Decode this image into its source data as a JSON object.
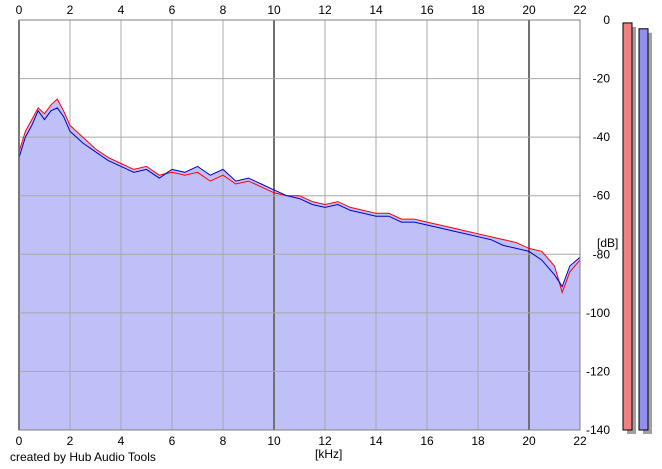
{
  "chart_data": {
    "type": "area",
    "xlabel": "[kHz]",
    "ylabel": "[dB]",
    "credit": "created by Hub Audio Tools",
    "xlim": [
      0,
      22
    ],
    "ylim": [
      -140,
      0
    ],
    "x_ticks": [
      0,
      2,
      4,
      6,
      8,
      10,
      12,
      14,
      16,
      18,
      20,
      22
    ],
    "y_ticks": [
      0,
      -20,
      -40,
      -60,
      -80,
      -100,
      -120,
      -140
    ],
    "grid": true,
    "series": [
      {
        "color": "#ff0000",
        "x": [
          0,
          0.25,
          0.5,
          0.75,
          1,
          1.25,
          1.5,
          1.75,
          2,
          2.5,
          3,
          3.5,
          4,
          4.5,
          5,
          5.5,
          6,
          6.5,
          7,
          7.5,
          8,
          8.5,
          9,
          9.5,
          10,
          10.5,
          11,
          11.5,
          12,
          12.5,
          13,
          13.5,
          14,
          14.5,
          15,
          15.5,
          16,
          16.5,
          17,
          17.5,
          18,
          18.5,
          19,
          19.5,
          20,
          20.5,
          21,
          21.3,
          21.6,
          22
        ],
        "y": [
          -45,
          -38,
          -34,
          -30,
          -32,
          -29,
          -27,
          -31,
          -36,
          -40,
          -44,
          -47,
          -49,
          -51,
          -50,
          -53,
          -52,
          -53,
          -52,
          -55,
          -53,
          -56,
          -55,
          -57,
          -59,
          -60,
          -60,
          -62,
          -63,
          -62,
          -64,
          -65,
          -66,
          -66,
          -68,
          -68,
          -69,
          -70,
          -71,
          -72,
          -73,
          -74,
          -75,
          -76,
          -78,
          -79,
          -84,
          -93,
          -86,
          -82
        ]
      },
      {
        "color": "#0000c8",
        "x": [
          0,
          0.25,
          0.5,
          0.75,
          1,
          1.25,
          1.5,
          1.75,
          2,
          2.5,
          3,
          3.5,
          4,
          4.5,
          5,
          5.5,
          6,
          6.5,
          7,
          7.5,
          8,
          8.5,
          9,
          9.5,
          10,
          10.5,
          11,
          11.5,
          12,
          12.5,
          13,
          13.5,
          14,
          14.5,
          15,
          15.5,
          16,
          16.5,
          17,
          17.5,
          18,
          18.5,
          19,
          19.5,
          20,
          20.5,
          21,
          21.3,
          21.6,
          22
        ],
        "y": [
          -47,
          -40,
          -36,
          -31,
          -34,
          -31,
          -30,
          -33,
          -38,
          -42,
          -45,
          -48,
          -50,
          -52,
          -51,
          -54,
          -51,
          -52,
          -50,
          -53,
          -51,
          -55,
          -54,
          -56,
          -58,
          -60,
          -61,
          -63,
          -64,
          -63,
          -65,
          -66,
          -67,
          -67,
          -69,
          -69,
          -70,
          -71,
          -72,
          -73,
          -74,
          -75,
          -77,
          -78,
          -79,
          -82,
          -87,
          -91,
          -84,
          -81
        ]
      }
    ],
    "level_meters": [
      {
        "color": "#f08080",
        "level_db": -1
      },
      {
        "color": "#9090f0",
        "level_db": -3
      }
    ],
    "fill_color": "#c0c0f8"
  }
}
